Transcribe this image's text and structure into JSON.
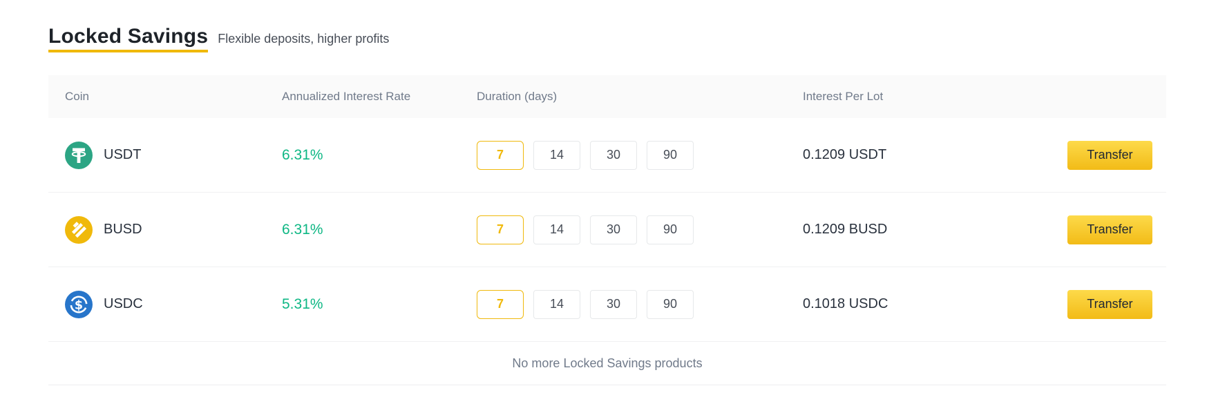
{
  "page": {
    "title": "Locked Savings",
    "subtitle": "Flexible deposits, higher profits"
  },
  "table": {
    "columns": [
      "Coin",
      "Annualized Interest Rate",
      "Duration (days)",
      "Interest Per Lot"
    ],
    "rows": [
      {
        "coin": "USDT",
        "icon": "usdt-coin-icon",
        "rate": "6.31%",
        "durations": [
          "7",
          "14",
          "30",
          "90"
        ],
        "selected_duration": "7",
        "interest": "0.1209 USDT",
        "action": "Transfer"
      },
      {
        "coin": "BUSD",
        "icon": "busd-coin-icon",
        "rate": "6.31%",
        "durations": [
          "7",
          "14",
          "30",
          "90"
        ],
        "selected_duration": "7",
        "interest": "0.1209 BUSD",
        "action": "Transfer"
      },
      {
        "coin": "USDC",
        "icon": "usdc-coin-icon",
        "rate": "5.31%",
        "durations": [
          "7",
          "14",
          "30",
          "90"
        ],
        "selected_duration": "7",
        "interest": "0.1018 USDC",
        "action": "Transfer"
      }
    ],
    "footer": "No more Locked Savings products"
  },
  "colors": {
    "accent_yellow": "#F0B90B",
    "transfer_gradient_top": "#FDDA4A",
    "transfer_gradient_bottom": "#F2BB17",
    "rate_green": "#0EB784",
    "usdt_teal": "#2CA584",
    "busd_yellow": "#F0B90B",
    "usdc_blue": "#2775CA",
    "header_bg": "#FAFAFA",
    "header_text": "#707A8A",
    "cell_text": "#29313D"
  }
}
